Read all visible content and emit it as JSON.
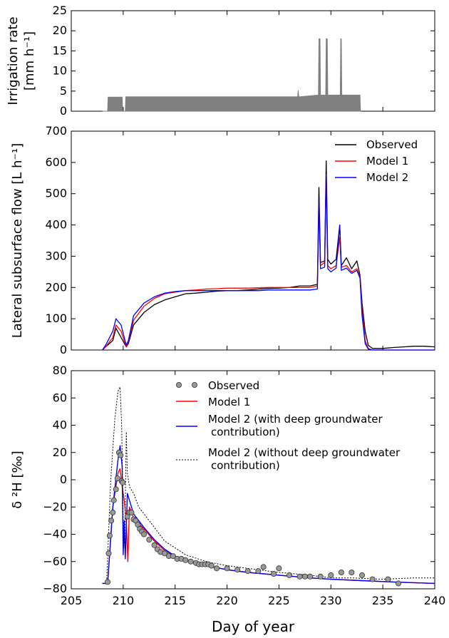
{
  "chart_data": [
    {
      "type": "bar",
      "panel": "irrigation",
      "ylabel_line1": "Irrigation rate",
      "ylabel_line2": "[mm h⁻¹]",
      "xlim": [
        205,
        240
      ],
      "ylim": [
        0,
        25
      ],
      "yticks": [
        "0",
        "5",
        "10",
        "15",
        "20",
        "25"
      ],
      "series": [
        {
          "color": "#808080",
          "x": [
            208.0,
            208.5,
            208.55,
            209.9,
            209.95,
            210.2,
            210.25,
            226.8,
            226.85,
            226.9,
            227.0,
            228.8,
            228.85,
            228.95,
            229.0,
            229.5,
            229.55,
            229.65,
            229.7,
            230.9,
            230.95,
            231.0,
            231.05,
            232.8,
            232.85
          ],
          "y": [
            0,
            0,
            3.5,
            3.5,
            0,
            0,
            3.6,
            3.6,
            5.2,
            3.6,
            3.6,
            4.0,
            18,
            18,
            4.0,
            4.0,
            18,
            18,
            4.0,
            4.0,
            18,
            18,
            4.0,
            4.0,
            0
          ]
        }
      ]
    },
    {
      "type": "line",
      "panel": "lateral-flow",
      "ylabel": "Lateral subsurface flow [L h⁻¹]",
      "xlim": [
        205,
        240
      ],
      "ylim": [
        0,
        700
      ],
      "yticks": [
        "0",
        "100",
        "200",
        "300",
        "400",
        "500",
        "600",
        "700"
      ],
      "legend_position": "upper-right",
      "series": [
        {
          "name": "Observed",
          "color": "#000000",
          "x": [
            205,
            208.0,
            208.3,
            209.0,
            209.3,
            209.8,
            210.3,
            210.5,
            211.0,
            212.0,
            213.0,
            214.0,
            215.0,
            216.0,
            217.0,
            218.0,
            219.0,
            220.0,
            221.0,
            222.0,
            223.0,
            224.0,
            225.0,
            226.0,
            227.0,
            228.0,
            228.7,
            228.85,
            229.0,
            229.4,
            229.55,
            229.7,
            230.0,
            230.5,
            230.85,
            231.0,
            231.5,
            232.0,
            232.5,
            232.8,
            233.0,
            233.3,
            233.6,
            234.0,
            235.0,
            236.0,
            237.0,
            238.0,
            239.0,
            240.0
          ],
          "y": [
            null,
            0,
            10,
            30,
            70,
            40,
            10,
            20,
            80,
            120,
            145,
            160,
            170,
            180,
            182,
            185,
            188,
            190,
            190,
            192,
            195,
            197,
            198,
            200,
            205,
            205,
            210,
            520,
            280,
            285,
            605,
            290,
            275,
            290,
            400,
            270,
            295,
            260,
            285,
            240,
            150,
            60,
            15,
            5,
            5,
            8,
            10,
            12,
            12,
            10
          ]
        },
        {
          "name": "Model 1",
          "color": "#ff0000",
          "x": [
            205,
            208.0,
            208.3,
            209.0,
            209.3,
            209.8,
            210.3,
            210.5,
            211.0,
            212.0,
            213.0,
            214.0,
            215.0,
            216.0,
            217.0,
            218.0,
            219.0,
            220.0,
            221.0,
            222.0,
            223.0,
            224.0,
            225.0,
            226.0,
            227.0,
            228.0,
            228.7,
            228.85,
            229.0,
            229.4,
            229.55,
            229.7,
            230.0,
            230.5,
            230.85,
            231.0,
            231.5,
            232.0,
            232.5,
            232.8,
            233.0,
            233.3,
            233.6,
            234.0,
            235.0,
            236.0,
            237.0,
            238.0,
            239.0,
            240.0
          ],
          "y": [
            null,
            0,
            10,
            40,
            80,
            60,
            10,
            25,
            95,
            140,
            165,
            180,
            185,
            190,
            192,
            195,
            196,
            198,
            198,
            198,
            199,
            200,
            200,
            200,
            200,
            200,
            205,
            470,
            270,
            280,
            560,
            270,
            260,
            270,
            360,
            265,
            270,
            250,
            260,
            235,
            130,
            30,
            5,
            0,
            0,
            0,
            0,
            0,
            0,
            0
          ]
        },
        {
          "name": "Model 2",
          "color": "#0000ff",
          "x": [
            205,
            208.0,
            208.3,
            209.0,
            209.3,
            209.8,
            210.3,
            210.5,
            211.0,
            212.0,
            213.0,
            214.0,
            215.0,
            216.0,
            217.0,
            218.0,
            219.0,
            220.0,
            221.0,
            222.0,
            223.0,
            224.0,
            225.0,
            226.0,
            227.0,
            228.0,
            228.7,
            228.85,
            229.0,
            229.4,
            229.55,
            229.7,
            230.0,
            230.5,
            230.85,
            231.0,
            231.5,
            232.0,
            232.5,
            232.8,
            233.0,
            233.3,
            233.6,
            234.0,
            235.0,
            236.0,
            237.0,
            238.0,
            239.0,
            240.0
          ],
          "y": [
            null,
            0,
            15,
            60,
            100,
            80,
            15,
            30,
            110,
            150,
            170,
            182,
            187,
            190,
            190,
            190,
            190,
            190,
            190,
            190,
            190,
            192,
            192,
            192,
            192,
            192,
            195,
            480,
            260,
            265,
            560,
            260,
            250,
            262,
            400,
            255,
            262,
            245,
            255,
            230,
            110,
            20,
            3,
            0,
            0,
            0,
            0,
            0,
            0,
            0
          ]
        }
      ]
    },
    {
      "type": "scatter+line",
      "panel": "isotope",
      "ylabel": "δ ²H [‰]",
      "xlabel": "Day of year",
      "xlim": [
        205,
        240
      ],
      "ylim": [
        -80,
        80
      ],
      "xticks": [
        "205",
        "210",
        "215",
        "220",
        "225",
        "230",
        "235",
        "240"
      ],
      "yticks": [
        "−80",
        "−60",
        "−40",
        "−20",
        "0",
        "20",
        "40",
        "60",
        "80"
      ],
      "legend_position": "upper-center",
      "observed": {
        "name": "Observed",
        "color": "#999999",
        "x": [
          208.5,
          208.6,
          208.7,
          208.85,
          209.0,
          209.1,
          209.3,
          209.45,
          209.6,
          209.75,
          209.85,
          209.95,
          210.4,
          210.6,
          210.8,
          211.0,
          211.2,
          211.4,
          211.6,
          211.8,
          212.0,
          212.5,
          213.0,
          213.3,
          213.6,
          214.0,
          214.4,
          214.8,
          215.2,
          215.6,
          216.0,
          216.5,
          217.0,
          217.3,
          217.6,
          217.9,
          218.2,
          218.5,
          219.0,
          220.0,
          221.0,
          222.0,
          223.0,
          223.5,
          224.5,
          225.0,
          226.0,
          227.0,
          227.5,
          228.0,
          229.0,
          230.0,
          231.0,
          232.0,
          233.0,
          234.0,
          235.5,
          236.5
        ],
        "y": [
          -75,
          -54,
          -41,
          -30,
          -24,
          -15,
          -7,
          1,
          20,
          18,
          -1,
          -2,
          -27,
          -24,
          -24,
          -29,
          -30,
          -33,
          -36,
          -38,
          -40,
          -44,
          -48,
          -51,
          -53,
          -54,
          -56,
          -56,
          -58,
          -58,
          -59,
          -60,
          -61,
          -62,
          -62,
          -62,
          -62,
          -63,
          -65,
          -65,
          -66,
          -67,
          -67,
          -64,
          -69,
          -65,
          -70,
          -71,
          -71,
          -71,
          -71,
          -70,
          -68,
          -68,
          -70,
          -73,
          -73,
          -76
        ]
      },
      "series": [
        {
          "name": "Model 1",
          "color": "#ff0000",
          "dash": "",
          "x": [
            208.0,
            208.5,
            209.0,
            209.5,
            209.7,
            209.9,
            210.1,
            210.3,
            210.45,
            210.6,
            211.0,
            212.0,
            213.0,
            214.0,
            215.0,
            216.0,
            218.0,
            220.0,
            222.0,
            225.0,
            228.0,
            230.0,
            233.0,
            236.0,
            240.0
          ],
          "y": [
            -76,
            -76,
            -20,
            5,
            8,
            -5,
            -15,
            -30,
            -60,
            -20,
            -28,
            -36,
            -45,
            -52,
            -56,
            -59,
            -63,
            -66,
            -68,
            -70,
            -72,
            -73,
            -74,
            -75,
            -76
          ]
        },
        {
          "name": "Model 2 (with deep groundwater contribution)",
          "color": "#0000ff",
          "dash": "",
          "x": [
            208.0,
            208.5,
            209.0,
            209.5,
            209.7,
            209.9,
            210.0,
            210.1,
            210.2,
            210.4,
            210.6,
            211.0,
            212.0,
            213.0,
            214.0,
            215.0,
            216.0,
            218.0,
            220.0,
            222.0,
            225.0,
            228.0,
            230.0,
            233.0,
            236.0,
            240.0
          ],
          "y": [
            -76,
            -76,
            -20,
            15,
            25,
            10,
            -55,
            -30,
            -58,
            -10,
            -15,
            -25,
            -35,
            -44,
            -51,
            -56,
            -59,
            -63,
            -66,
            -68,
            -70,
            -72,
            -73,
            -74,
            -75,
            -76
          ]
        },
        {
          "name": "Model 2 (without deep groundwater contribution)",
          "color": "#000000",
          "dash": "2,2",
          "x": [
            208.0,
            208.4,
            208.8,
            209.2,
            209.5,
            209.7,
            209.85,
            210.0,
            210.15,
            210.3,
            210.4,
            210.6,
            211.0,
            211.5,
            212.0,
            213.0,
            214.0,
            215.0,
            216.0,
            218.0,
            220.0,
            222.0,
            225.0,
            228.0,
            230.0,
            232.0,
            235.0,
            238.0,
            240.0
          ],
          "y": [
            -76,
            -76,
            0,
            45,
            65,
            68,
            40,
            -30,
            -50,
            35,
            5,
            -5,
            -10,
            -20,
            -25,
            -35,
            -45,
            -50,
            -55,
            -60,
            -63,
            -65,
            -68,
            -70,
            -72,
            -72,
            -73,
            -72,
            -72
          ]
        }
      ]
    }
  ]
}
